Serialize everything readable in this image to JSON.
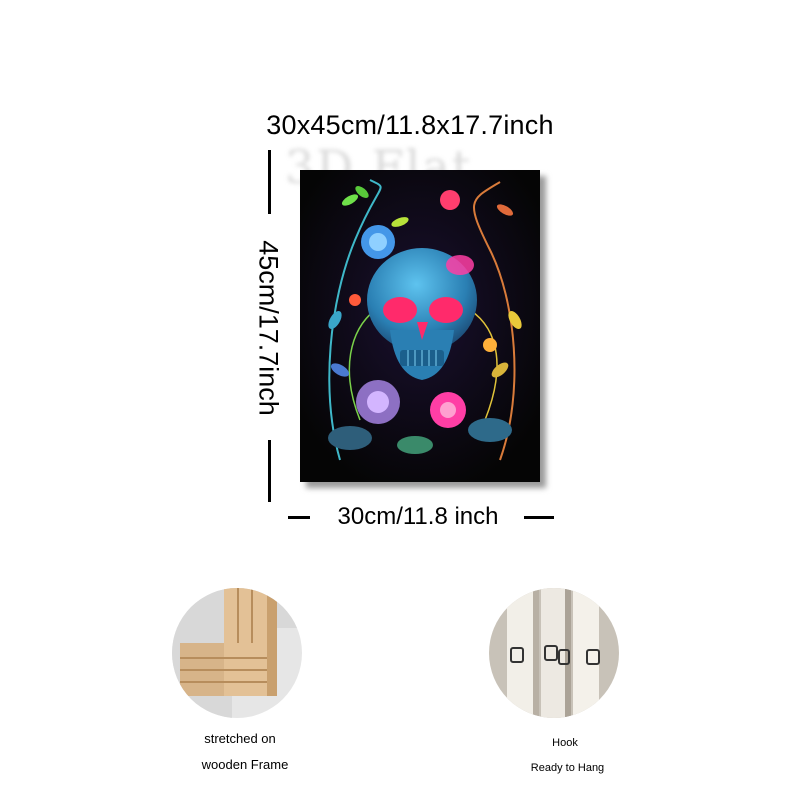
{
  "dimensions": {
    "overall": "30x45cm/11.8x17.7inch",
    "height": "45cm/17.7inch",
    "width": "30cm/11.8 inch"
  },
  "watermark": "3D Flat",
  "artwork": {
    "subject": "skull-with-neon-flowers",
    "colors": {
      "background": "#050505",
      "skull": "#2a8fc4",
      "eyes": "#ff2a6b",
      "flower_pink": "#ff3ea5",
      "flower_blue": "#4aa6ff",
      "leaf_green": "#6fe04a",
      "leaf_yellow": "#e9c93a"
    }
  },
  "features": [
    {
      "label_lines": [
        "stretched on",
        "wooden Frame"
      ],
      "icon": "wooden-frame-photo"
    },
    {
      "label_lines": [
        "Hook",
        "Ready to Hang"
      ],
      "icon": "hook-photo"
    }
  ]
}
